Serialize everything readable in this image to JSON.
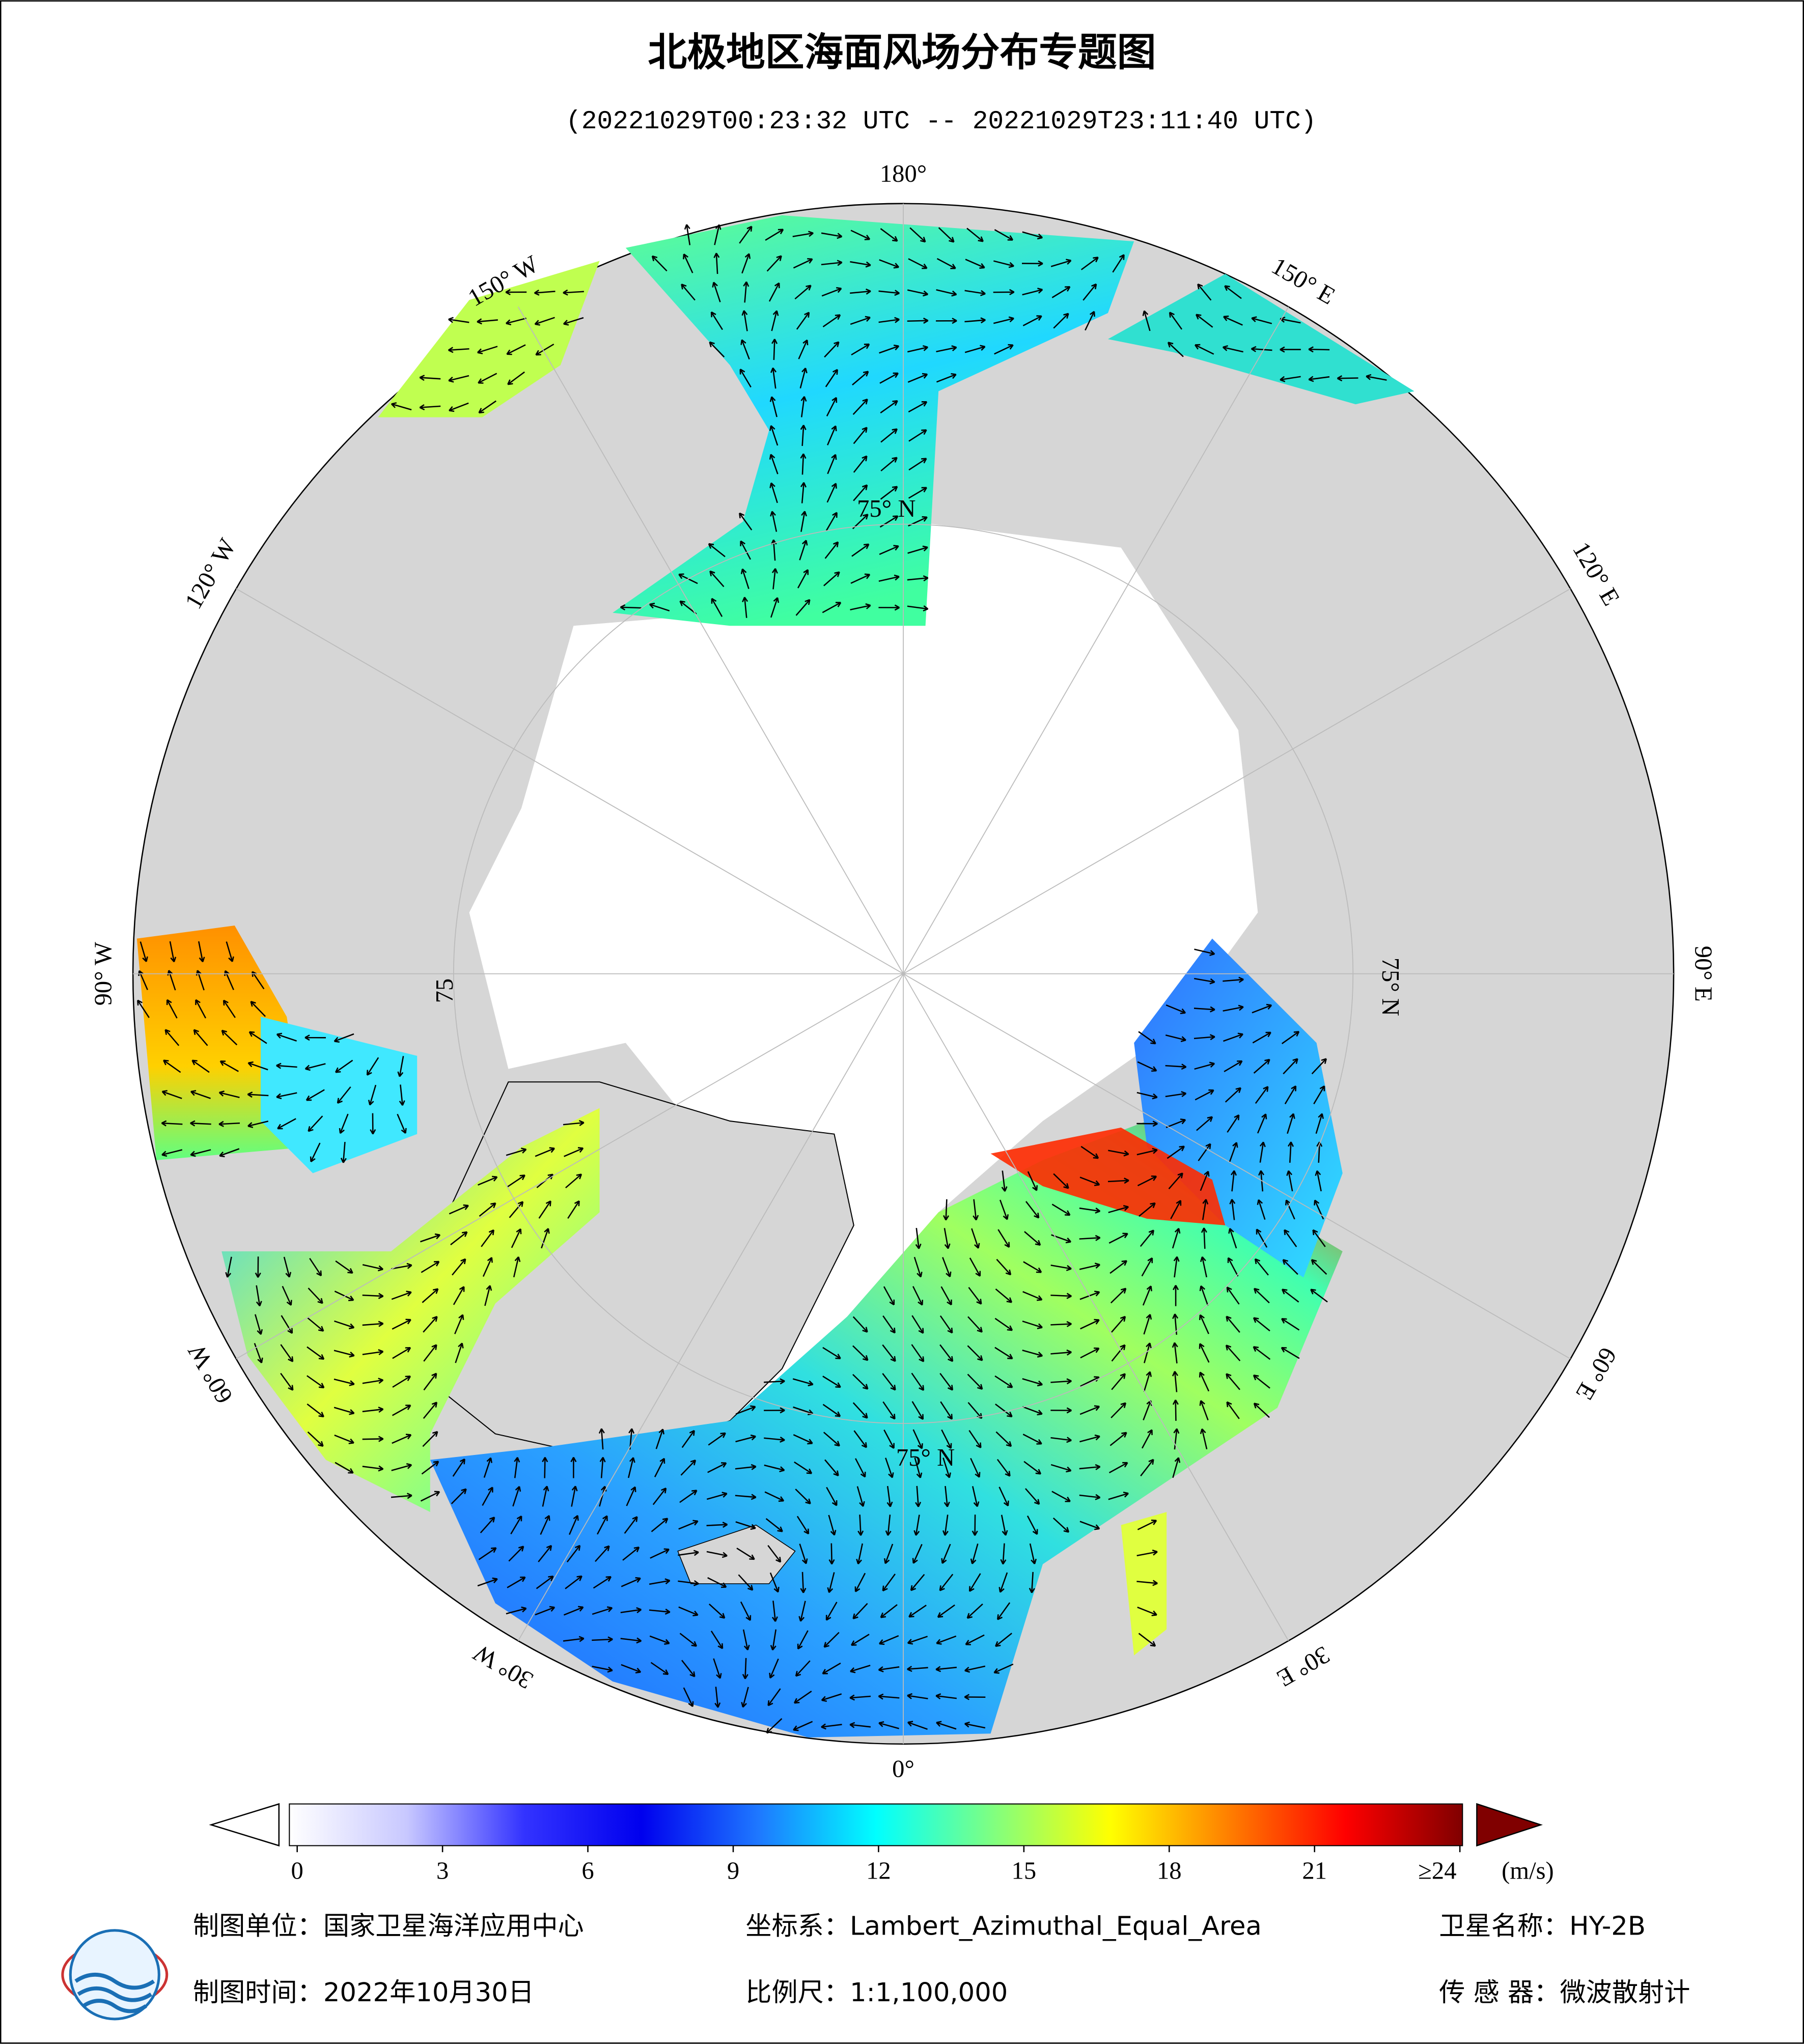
{
  "title": "北极地区海面风场分布专题图",
  "subtitle": "(20221029T00:23:32 UTC -- 20221029T23:11:40 UTC)",
  "map": {
    "meridians": [
      {
        "value": 180,
        "label": "180°"
      },
      {
        "value": 150,
        "label": "150° E"
      },
      {
        "value": 120,
        "label": "120° E"
      },
      {
        "value": 90,
        "label": "90° E"
      },
      {
        "value": 60,
        "label": "60° E"
      },
      {
        "value": 30,
        "label": "30° E"
      },
      {
        "value": 0,
        "label": "0°"
      },
      {
        "value": -30,
        "label": "30° W"
      },
      {
        "value": -60,
        "label": "60° W"
      },
      {
        "value": -90,
        "label": "90° W"
      },
      {
        "value": -120,
        "label": "120° W"
      },
      {
        "value": -150,
        "label": "150° W"
      }
    ],
    "parallel_labels": [
      "75° N",
      "75° N",
      "75° N",
      "75"
    ]
  },
  "colorbar": {
    "unit": "(m/s)",
    "range": [
      0,
      24
    ],
    "ticks": [
      0,
      3,
      6,
      9,
      12,
      15,
      18,
      21,
      {
        "value": 24,
        "label": "≥24"
      }
    ],
    "colors": [
      "#ffffff",
      "#c8c8ff",
      "#3333ff",
      "#0000ee",
      "#1e78ff",
      "#00ffff",
      "#80ff80",
      "#ffff00",
      "#ff8000",
      "#ff0000",
      "#800000"
    ]
  },
  "footer": {
    "organization": "制图单位：国家卫星海洋应用中心",
    "projection": "坐标系：Lambert_Azimuthal_Equal_Area",
    "satellite": "卫星名称：HY-2B",
    "date": "制图时间：2022年10月30日",
    "scale": "比例尺：1:1,100,000",
    "sensor": "传 感 器：微波散射计"
  }
}
